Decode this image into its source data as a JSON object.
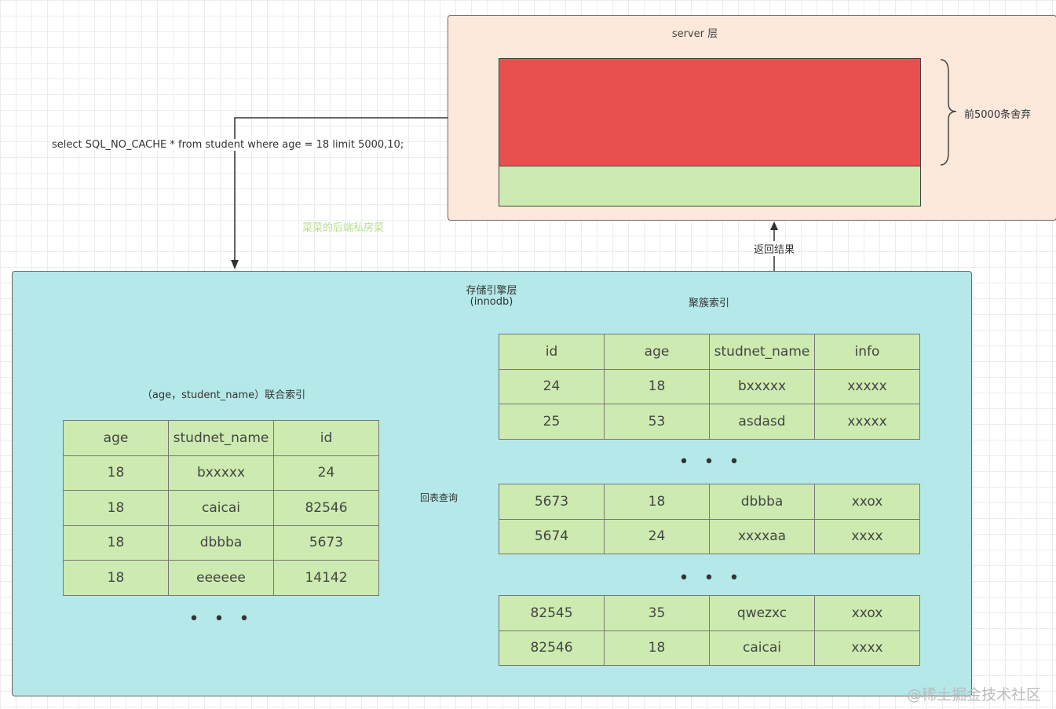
{
  "server": {
    "title": "server 层",
    "brace_label": "前5000条舍弃"
  },
  "query": "select SQL_NO_CACHE * from student where age = 18 limit 5000,10;",
  "author_watermark": "菜菜的后端私房菜",
  "return_label": "返回结果",
  "storage": {
    "title": "存储引擎层",
    "subtitle": "(innodb)",
    "clustered_label": "聚簇索引",
    "composite_label": "（age，student_name）联合索引",
    "lookup_label": "回表查询",
    "ellipsis": "• • •"
  },
  "composite_table": {
    "headers": [
      "age",
      "studnet_name",
      "id"
    ],
    "rows": [
      [
        "18",
        "bxxxxx",
        "24"
      ],
      [
        "18",
        "caicai",
        "82546"
      ],
      [
        "18",
        "dbbba",
        "5673"
      ],
      [
        "18",
        "eeeeee",
        "14142"
      ]
    ]
  },
  "clustered_tables": [
    {
      "headers": [
        "id",
        "age",
        "studnet_name",
        "info"
      ],
      "rows": [
        [
          "24",
          "18",
          "bxxxxx",
          "xxxxx"
        ],
        [
          "25",
          "53",
          "asdasd",
          "xxxxx"
        ]
      ]
    },
    {
      "rows": [
        [
          "5673",
          "18",
          "dbbba",
          "xxox"
        ],
        [
          "5674",
          "24",
          "xxxxaa",
          "xxxx"
        ]
      ]
    },
    {
      "rows": [
        [
          "82545",
          "35",
          "qwezxc",
          "xxox"
        ],
        [
          "82546",
          "18",
          "caicai",
          "xxxx"
        ]
      ]
    }
  ],
  "site_watermark": "@稀土掘金技术社区",
  "colors": {
    "server_bg": "#fce9dc",
    "storage_bg": "#b5e8e8",
    "discarded": "#e85050",
    "kept": "#cdebb0"
  }
}
